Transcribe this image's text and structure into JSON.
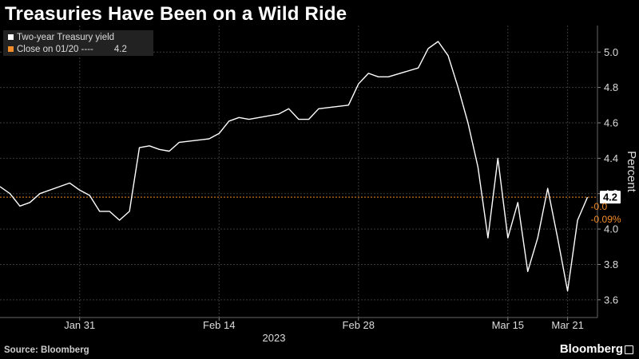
{
  "title": "Treasuries Have Been on a Wild Ride",
  "source": "Source: Bloomberg",
  "brand": "Bloomberg",
  "colors": {
    "series": "#ffffff",
    "reference": "#f28c28",
    "grid": "#3a3a3a",
    "background": "#000000"
  },
  "legend": {
    "series_label": "Two-year Treasury yield",
    "close_label": "Close on 01/20 ----",
    "close_value": "4.2"
  },
  "chart_data": {
    "type": "line",
    "title": "Treasuries Have Been on a Wild Ride",
    "ylabel": "Percent",
    "xlabel": "2023",
    "ylim": [
      3.5,
      5.15
    ],
    "yticks": [
      3.6,
      3.8,
      4.0,
      4.2,
      4.4,
      4.6,
      4.8,
      5.0
    ],
    "xlim": [
      "2023-01-23",
      "2023-03-24"
    ],
    "xticks": [
      {
        "date": "2023-01-31",
        "label": "Jan 31"
      },
      {
        "date": "2023-02-14",
        "label": "Feb 14"
      },
      {
        "date": "2023-02-28",
        "label": "Feb 28"
      },
      {
        "date": "2023-03-15",
        "label": "Mar 15"
      },
      {
        "date": "2023-03-21",
        "label": "Mar 21"
      }
    ],
    "year_label": "2023",
    "grid": true,
    "legend_position": "top-left",
    "reference_line": {
      "value": 4.18,
      "label": "Close on 01/20"
    },
    "last_value_label": "4.2",
    "change_labels": [
      "-0.0",
      "-0.09%"
    ],
    "series": [
      {
        "name": "Two-year Treasury yield",
        "points": [
          [
            "2023-01-23",
            4.24
          ],
          [
            "2023-01-24",
            4.2
          ],
          [
            "2023-01-25",
            4.13
          ],
          [
            "2023-01-26",
            4.15
          ],
          [
            "2023-01-27",
            4.2
          ],
          [
            "2023-01-30",
            4.26
          ],
          [
            "2023-01-31",
            4.22
          ],
          [
            "2023-02-01",
            4.19
          ],
          [
            "2023-02-02",
            4.1
          ],
          [
            "2023-02-03",
            4.1
          ],
          [
            "2023-02-04",
            4.05
          ],
          [
            "2023-02-05",
            4.1
          ],
          [
            "2023-02-06",
            4.46
          ],
          [
            "2023-02-07",
            4.47
          ],
          [
            "2023-02-08",
            4.45
          ],
          [
            "2023-02-09",
            4.44
          ],
          [
            "2023-02-10",
            4.49
          ],
          [
            "2023-02-13",
            4.51
          ],
          [
            "2023-02-14",
            4.54
          ],
          [
            "2023-02-15",
            4.61
          ],
          [
            "2023-02-16",
            4.63
          ],
          [
            "2023-02-17",
            4.62
          ],
          [
            "2023-02-20",
            4.65
          ],
          [
            "2023-02-21",
            4.68
          ],
          [
            "2023-02-22",
            4.62
          ],
          [
            "2023-02-23",
            4.62
          ],
          [
            "2023-02-24",
            4.68
          ],
          [
            "2023-02-27",
            4.7
          ],
          [
            "2023-02-28",
            4.82
          ],
          [
            "2023-03-01",
            4.88
          ],
          [
            "2023-03-02",
            4.86
          ],
          [
            "2023-03-03",
            4.86
          ],
          [
            "2023-03-06",
            4.91
          ],
          [
            "2023-03-07",
            5.02
          ],
          [
            "2023-03-08",
            5.06
          ],
          [
            "2023-03-09",
            4.98
          ],
          [
            "2023-03-10",
            4.8
          ],
          [
            "2023-03-11",
            4.6
          ],
          [
            "2023-03-12",
            4.35
          ],
          [
            "2023-03-13",
            3.95
          ],
          [
            "2023-03-14",
            4.4
          ],
          [
            "2023-03-15",
            3.95
          ],
          [
            "2023-03-16",
            4.15
          ],
          [
            "2023-03-17",
            3.76
          ],
          [
            "2023-03-18",
            3.95
          ],
          [
            "2023-03-19",
            4.23
          ],
          [
            "2023-03-20",
            3.95
          ],
          [
            "2023-03-21",
            3.65
          ],
          [
            "2023-03-22",
            4.05
          ],
          [
            "2023-03-23",
            4.18
          ]
        ]
      }
    ]
  }
}
